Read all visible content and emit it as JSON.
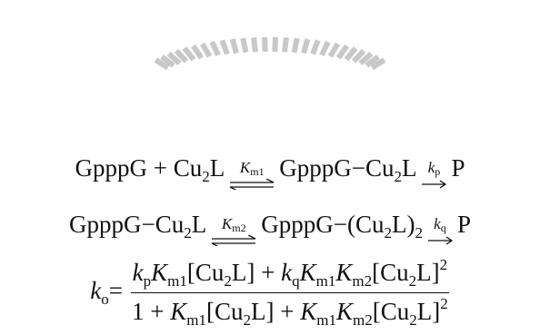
{
  "reaction_1": [
    "GpppG + Cu",
    "2",
    "L",
    "K",
    "m1",
    "GpppG−Cu",
    "2",
    "L",
    "k",
    "p",
    "P"
  ],
  "reaction_2": [
    "GpppG−Cu",
    "2",
    "L",
    "K",
    "m2",
    "GpppG−(Cu",
    "2",
    "L)",
    "2",
    "k",
    "q",
    "P"
  ],
  "rate_equation": {
    "left": [
      "k",
      "o",
      "="
    ],
    "numerator": [
      "k",
      "p",
      "K",
      "m1",
      "[Cu",
      "2",
      "L] + ",
      "k",
      "q",
      "K",
      "m1",
      "K",
      "m2",
      "[Cu",
      "2",
      "L]",
      "2"
    ],
    "denominator": [
      "1 + ",
      "K",
      "m1",
      "[Cu",
      "2",
      "L] + ",
      "K",
      "m1",
      "K",
      "m2",
      "[Cu",
      "2",
      "L]",
      "2"
    ]
  }
}
